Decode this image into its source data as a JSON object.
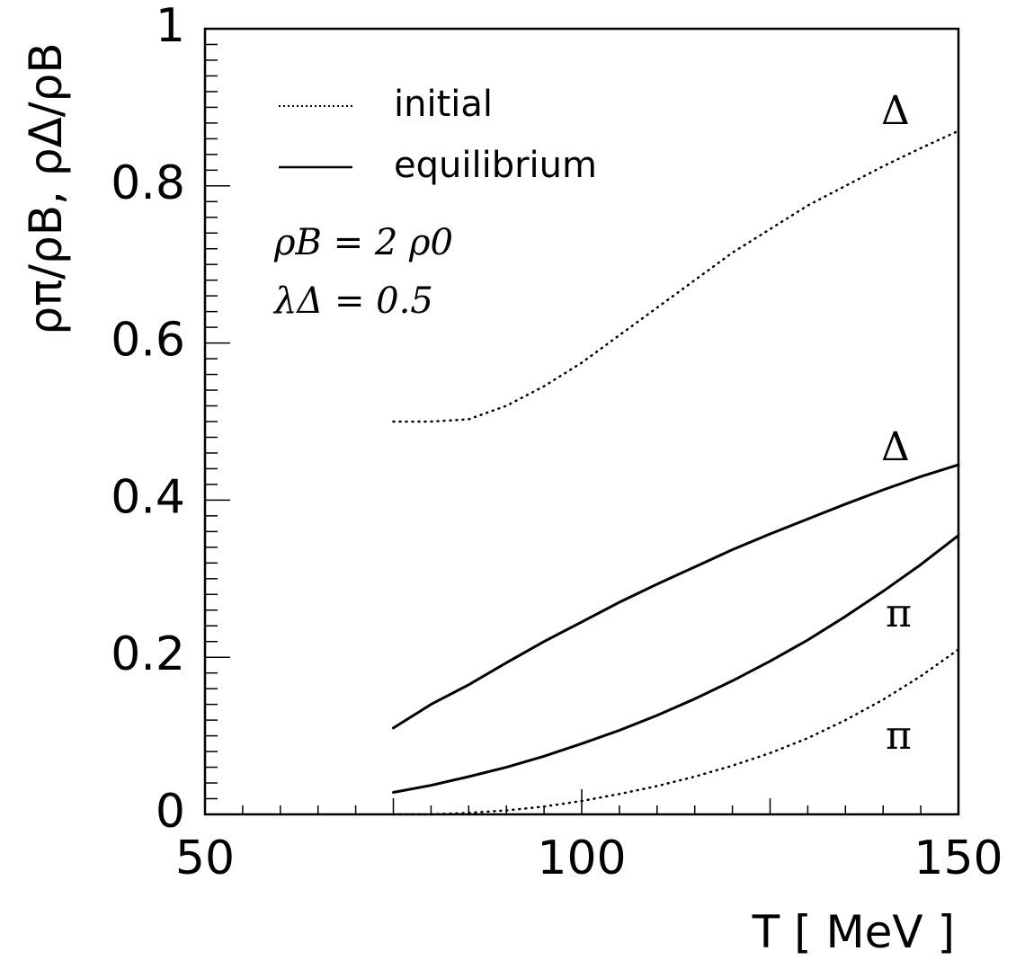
{
  "chart_data": {
    "type": "line",
    "xlabel": "T [ MeV ]",
    "ylabel": "ρπ/ρB, ρΔ/ρB",
    "xlim": [
      50,
      150
    ],
    "ylim": [
      0,
      1
    ],
    "x_ticks": [
      "50",
      "100",
      "150"
    ],
    "y_ticks": [
      "0",
      "0.2",
      "0.4",
      "0.6",
      "0.8",
      "1"
    ],
    "grid": false,
    "legend": {
      "placement": "top-left",
      "entries": [
        {
          "label": "initial",
          "style": "dotted"
        },
        {
          "label": "equilibrium",
          "style": "solid"
        }
      ]
    },
    "annotations": [
      "ρB = 2 ρ0",
      "λΔ  = 0.5"
    ],
    "series": [
      {
        "name": "Δ",
        "style": "dotted",
        "x": [
          75,
          80,
          85,
          90,
          95,
          100,
          105,
          110,
          115,
          120,
          125,
          130,
          135,
          140,
          145,
          150
        ],
        "y": [
          0.5,
          0.5,
          0.503,
          0.52,
          0.545,
          0.575,
          0.61,
          0.645,
          0.68,
          0.715,
          0.745,
          0.775,
          0.8,
          0.825,
          0.848,
          0.87
        ]
      },
      {
        "name": "Δ",
        "style": "solid",
        "x": [
          75,
          80,
          85,
          90,
          95,
          100,
          105,
          110,
          115,
          120,
          125,
          130,
          135,
          140,
          145,
          150
        ],
        "y": [
          0.11,
          0.14,
          0.165,
          0.193,
          0.22,
          0.245,
          0.27,
          0.293,
          0.315,
          0.337,
          0.357,
          0.376,
          0.395,
          0.413,
          0.43,
          0.445
        ]
      },
      {
        "name": "π",
        "style": "solid",
        "x": [
          75,
          80,
          85,
          90,
          95,
          100,
          105,
          110,
          115,
          120,
          125,
          130,
          135,
          140,
          145,
          150
        ],
        "y": [
          0.028,
          0.037,
          0.048,
          0.06,
          0.074,
          0.09,
          0.107,
          0.126,
          0.147,
          0.17,
          0.195,
          0.222,
          0.252,
          0.284,
          0.318,
          0.355
        ]
      },
      {
        "name": "π",
        "style": "dotted",
        "x": [
          75,
          80,
          85,
          90,
          95,
          100,
          105,
          110,
          115,
          120,
          125,
          130,
          135,
          140,
          145,
          150
        ],
        "y": [
          0.0,
          0.0,
          0.002,
          0.005,
          0.01,
          0.017,
          0.026,
          0.036,
          0.048,
          0.062,
          0.078,
          0.097,
          0.12,
          0.146,
          0.176,
          0.21
        ]
      }
    ]
  }
}
